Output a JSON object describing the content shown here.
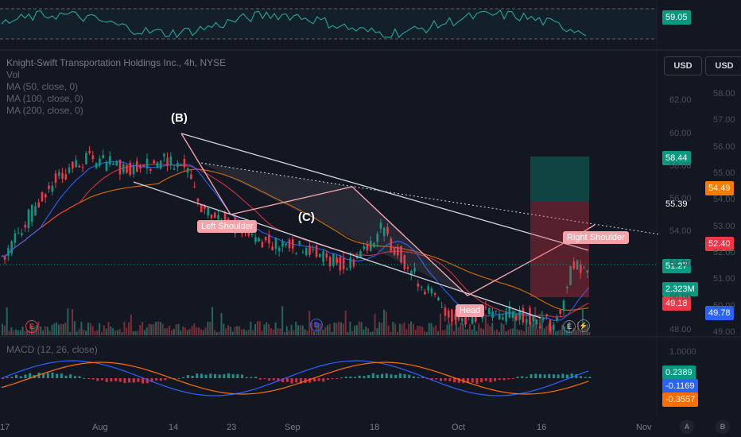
{
  "chart_data": [
    {
      "type": "line",
      "panel": "rsi",
      "series": [
        {
          "name": "RSI",
          "color": "#26a69a"
        }
      ],
      "current_value": 59.05,
      "levels": [
        70,
        30
      ]
    },
    {
      "type": "candlestick",
      "panel": "price",
      "title": "Knight-Swift Transportation Holdings Inc., 4h, NYSE",
      "indicators": [
        "Vol",
        "MA (50, close, 0)",
        "MA (100, close, 0)",
        "MA (200, close, 0)"
      ],
      "currency_buttons": [
        "USD",
        "USD"
      ],
      "ylim": [
        47.8,
        62.6
      ],
      "y_ticks_left": [
        62.0,
        60.0,
        58.0,
        56.0,
        54.0,
        52.0,
        50.0,
        48.0
      ],
      "y_ticks_right": [
        58.0,
        57.0,
        56.0,
        55.0,
        54.0,
        53.0,
        52.0,
        51.0,
        50.0,
        49.0
      ],
      "x_labels": [
        "17",
        "Aug",
        "14",
        "23",
        "Sep",
        "18",
        "Oct",
        "16",
        "Nov"
      ],
      "price_tags": [
        {
          "value": "58.44",
          "color": "#089981"
        },
        {
          "value": "54.49",
          "color": "#f57c00"
        },
        {
          "value": "55.39",
          "color": "#131722"
        },
        {
          "value": "52.40",
          "color": "#f23645"
        },
        {
          "value": "51.27",
          "color": "#089981"
        },
        {
          "value": "2.323M",
          "color": "#089981"
        },
        {
          "value": "49.18",
          "color": "#f23645"
        },
        {
          "value": "49.78",
          "color": "#2962ff"
        }
      ],
      "patterns": {
        "head_and_shoulders": [
          "Left Shoulder",
          "Head",
          "Right Shoulder"
        ],
        "waves": [
          "(B)",
          "(C)"
        ]
      },
      "last_close": 51.27
    },
    {
      "type": "bar",
      "panel": "macd",
      "title": "MACD (12, 26, close)",
      "series": [
        {
          "name": "Histogram",
          "color": "#26a69a"
        },
        {
          "name": "MACD",
          "color": "#2962ff"
        },
        {
          "name": "Signal",
          "color": "#ff6d00"
        }
      ],
      "values": {
        "histogram": 0.2389,
        "macd": -0.1169,
        "signal": -0.3557
      },
      "y_tick": "1.0000"
    }
  ],
  "ui": {
    "bottom_buttons": [
      "A",
      "B"
    ],
    "event_markers": [
      "E",
      "D",
      "E"
    ]
  }
}
